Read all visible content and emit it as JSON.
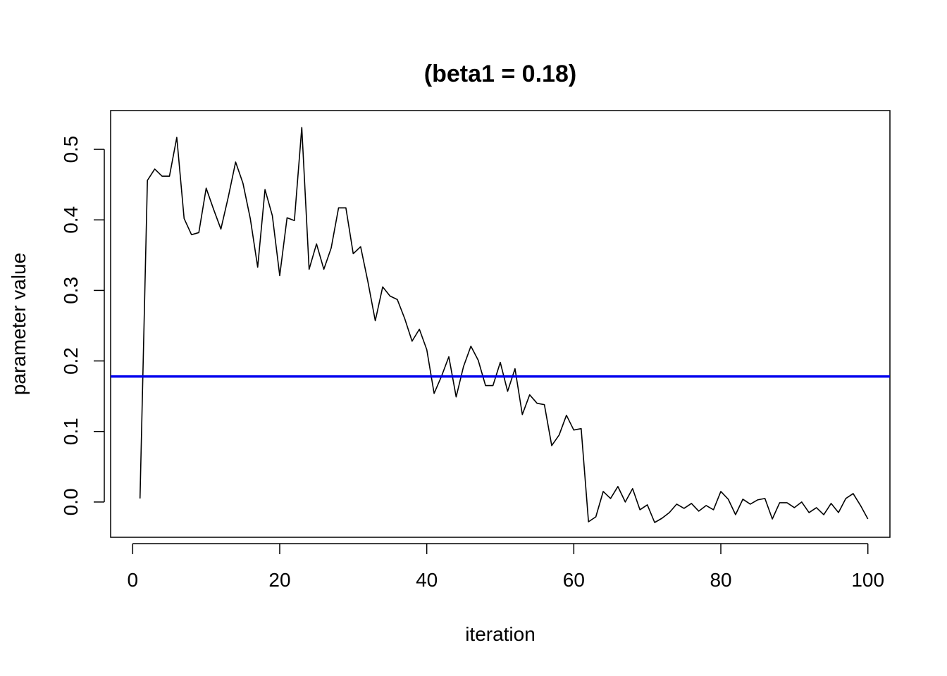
{
  "chart_data": {
    "type": "line",
    "title": "(beta1 = 0.18)",
    "xlabel": "iteration",
    "ylabel": "parameter value",
    "xlim": [
      -3.0,
      103.0
    ],
    "ylim": [
      -0.05,
      0.555
    ],
    "xticks": [
      0,
      20,
      40,
      60,
      80,
      100
    ],
    "xtick_labels": [
      "0",
      "20",
      "40",
      "60",
      "80",
      "100"
    ],
    "yticks": [
      0.0,
      0.1,
      0.2,
      0.3,
      0.4,
      0.5
    ],
    "ytick_labels": [
      "0.0",
      "0.1",
      "0.2",
      "0.3",
      "0.4",
      "0.5"
    ],
    "grid": false,
    "series": [
      {
        "color": "#000000",
        "x": [
          1,
          2,
          3,
          4,
          5,
          6,
          7,
          8,
          9,
          10,
          11,
          12,
          13,
          14,
          15,
          16,
          17,
          18,
          19,
          20,
          21,
          22,
          23,
          24,
          25,
          26,
          27,
          28,
          29,
          30,
          31,
          32,
          33,
          34,
          35,
          36,
          37,
          38,
          39,
          40,
          41,
          42,
          43,
          44,
          45,
          46,
          47,
          48,
          49,
          50,
          51,
          52,
          53,
          54,
          55,
          56,
          57,
          58,
          59,
          60,
          61,
          62,
          63,
          64,
          65,
          66,
          67,
          68,
          69,
          70,
          71,
          72,
          73,
          74,
          75,
          76,
          77,
          78,
          79,
          80,
          81,
          82,
          83,
          84,
          85,
          86,
          87,
          88,
          89,
          90,
          91,
          92,
          93,
          94,
          95,
          96,
          97,
          98,
          99,
          100
        ],
        "values": [
          0.005,
          0.456,
          0.472,
          0.462,
          0.462,
          0.517,
          0.402,
          0.379,
          0.382,
          0.445,
          0.415,
          0.387,
          0.432,
          0.482,
          0.452,
          0.402,
          0.333,
          0.443,
          0.406,
          0.321,
          0.403,
          0.399,
          0.531,
          0.33,
          0.366,
          0.33,
          0.36,
          0.417,
          0.417,
          0.352,
          0.362,
          0.312,
          0.257,
          0.305,
          0.292,
          0.287,
          0.26,
          0.228,
          0.245,
          0.216,
          0.154,
          0.178,
          0.206,
          0.149,
          0.192,
          0.221,
          0.201,
          0.165,
          0.165,
          0.198,
          0.157,
          0.189,
          0.124,
          0.152,
          0.14,
          0.138,
          0.08,
          0.095,
          0.123,
          0.102,
          0.104,
          -0.028,
          -0.021,
          0.015,
          0.005,
          0.022,
          0.0,
          0.019,
          -0.011,
          -0.004,
          -0.029,
          -0.023,
          -0.015,
          -0.003,
          -0.009,
          -0.002,
          -0.013,
          -0.005,
          -0.011,
          0.015,
          0.004,
          -0.018,
          0.004,
          -0.003,
          0.003,
          0.005,
          -0.024,
          -0.001,
          -0.001,
          -0.008,
          0.0,
          -0.015,
          -0.008,
          -0.018,
          -0.002,
          -0.015,
          0.005,
          0.012,
          -0.005,
          -0.024
        ]
      }
    ],
    "hlines": [
      {
        "y": 0.178,
        "color": "#0000ee"
      }
    ]
  }
}
